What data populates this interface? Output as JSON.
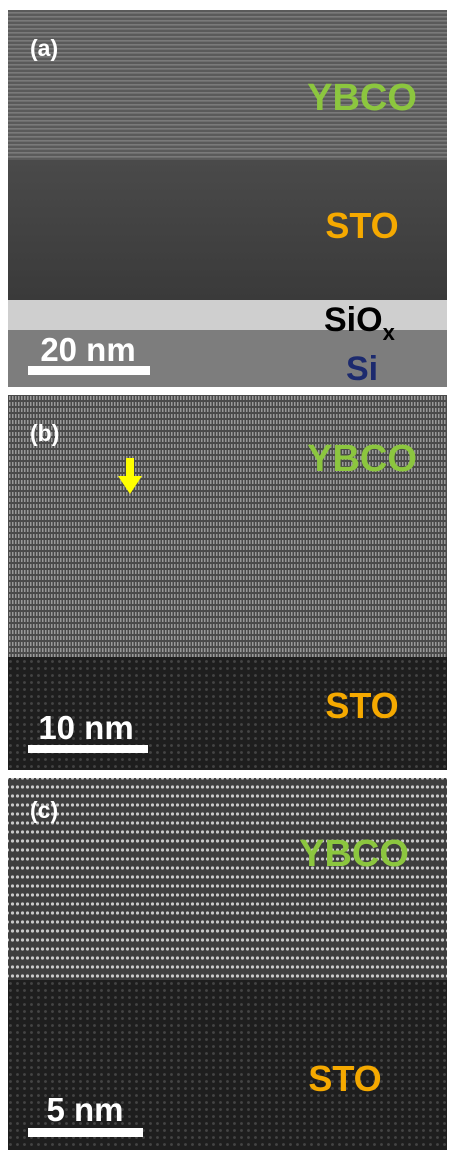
{
  "panels": [
    {
      "label": "(a)",
      "ybco": "YBCO",
      "sto": "STO",
      "siox": "SiO",
      "siox_sub": "x",
      "si": "Si",
      "scale_bar": "20 nm"
    },
    {
      "label": "(b)",
      "ybco": "YBCO",
      "sto": "STO",
      "scale_bar": "10 nm"
    },
    {
      "label": "(c)",
      "ybco": "YBCO",
      "sto": "STO",
      "scale_bar": "5 nm"
    }
  ]
}
